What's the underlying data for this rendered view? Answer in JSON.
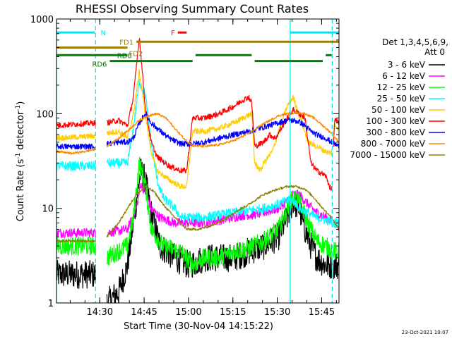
{
  "chart_data": {
    "type": "line",
    "title": "RHESSI Observing Summary Count Rates",
    "xlabel": "Start Time (30-Nov-04 14:15:22)",
    "ylabel": "Count Rate (s⁻¹ detector⁻¹)",
    "ylabel_parts": {
      "main": "Count Rate (s",
      "exp1": "-1",
      "mid": " detector",
      "exp2": "-1",
      "close": ")"
    },
    "yscale": "log",
    "ylim": [
      1,
      1000
    ],
    "xlim_minutes": [
      0,
      95.5
    ],
    "x_unit": "minutes since 14:15:22",
    "x_ticks": [
      {
        "label": "14:30",
        "value": 14.63
      },
      {
        "label": "14:45",
        "value": 29.63
      },
      {
        "label": "15:00",
        "value": 44.63
      },
      {
        "label": "15:15",
        "value": 59.63
      },
      {
        "label": "15:30",
        "value": 74.63
      },
      {
        "label": "15:45",
        "value": 89.63
      }
    ],
    "y_ticks": [
      {
        "label": "1",
        "value": 1
      },
      {
        "label": "10",
        "value": 10
      },
      {
        "label": "100",
        "value": 100
      },
      {
        "label": "1000",
        "value": 1000
      }
    ],
    "legend": {
      "header_line1": "Det 1,3,4,5,6,9,",
      "header_line2": "Att 0",
      "placement": "right"
    },
    "timestamp": "23-Oct-2021 10:07",
    "flags": [
      {
        "label": "N",
        "color": "#00e5ee",
        "y": 720,
        "segments": [
          [
            0,
            13
          ],
          [
            79,
            95.5
          ]
        ]
      },
      {
        "label": "F",
        "color": "#ff0000",
        "y": 720,
        "segments": [
          [
            41,
            44
          ]
        ]
      },
      {
        "label": "FD1",
        "color": "#9a7d0a",
        "y": 575,
        "segments": [
          [
            27,
            95.5
          ]
        ]
      },
      {
        "label": "FD2",
        "color": "#9a7d0a",
        "y": 500,
        "segments": [
          [
            0,
            24
          ]
        ]
      },
      {
        "label": "RD0",
        "color": "#008000",
        "y": 415,
        "segments": [
          [
            0,
            24
          ],
          [
            47,
            66
          ],
          [
            91,
            93
          ]
        ]
      },
      {
        "label": "RD6",
        "color": "#008000",
        "y": 360,
        "segments": [
          [
            18,
            46
          ],
          [
            67,
            90
          ]
        ]
      }
    ],
    "vlines": [
      {
        "x": 0,
        "color": "#00e5ee",
        "dashed": false
      },
      {
        "x": 13.2,
        "color": "#00e5ee",
        "dashed": true
      },
      {
        "x": 79,
        "color": "#00e5ee",
        "dashed": false
      },
      {
        "x": 93.2,
        "color": "#00e5ee",
        "dashed": true
      }
    ],
    "gaps": [
      [
        13.2,
        17
      ],
      [
        93.2,
        93.6
      ]
    ],
    "series": [
      {
        "name": "3 - 6 keV",
        "color": "#000000",
        "noise": 0.15,
        "points": [
          [
            0,
            2.0
          ],
          [
            13,
            2.0
          ],
          [
            17,
            1.0
          ],
          [
            21,
            1.3
          ],
          [
            24,
            2.5
          ],
          [
            27,
            12
          ],
          [
            28.5,
            25
          ],
          [
            30,
            20
          ],
          [
            32,
            9
          ],
          [
            35,
            4
          ],
          [
            40,
            3
          ],
          [
            45,
            2.5
          ],
          [
            50,
            3
          ],
          [
            55,
            3
          ],
          [
            60,
            3
          ],
          [
            65,
            3.5
          ],
          [
            70,
            4
          ],
          [
            75,
            5
          ],
          [
            78,
            8
          ],
          [
            80,
            12
          ],
          [
            82,
            10
          ],
          [
            84,
            6
          ],
          [
            86,
            4
          ],
          [
            88,
            3
          ],
          [
            91,
            2.5
          ],
          [
            94,
            2.5
          ],
          [
            95.5,
            2.5
          ]
        ]
      },
      {
        "name": "6 - 12 keV",
        "color": "#ff00ff",
        "noise": 0.05,
        "points": [
          [
            0,
            5.5
          ],
          [
            13,
            5.5
          ],
          [
            17,
            5.5
          ],
          [
            24,
            6
          ],
          [
            27,
            10
          ],
          [
            28.5,
            18
          ],
          [
            30,
            15
          ],
          [
            32,
            10
          ],
          [
            35,
            8
          ],
          [
            40,
            7
          ],
          [
            43,
            7
          ],
          [
            46,
            7
          ],
          [
            50,
            7
          ],
          [
            55,
            7.5
          ],
          [
            60,
            8
          ],
          [
            63,
            8.5
          ],
          [
            66,
            8.5
          ],
          [
            70,
            9
          ],
          [
            75,
            10
          ],
          [
            78,
            12
          ],
          [
            80,
            14
          ],
          [
            82,
            14
          ],
          [
            85,
            11
          ],
          [
            88,
            9
          ],
          [
            91,
            8
          ],
          [
            94,
            7
          ],
          [
            95.5,
            6.5
          ]
        ]
      },
      {
        "name": "12 - 25 keV",
        "color": "#00ff00",
        "noise": 0.1,
        "points": [
          [
            0,
            4
          ],
          [
            13,
            4
          ],
          [
            17,
            3
          ],
          [
            24,
            4
          ],
          [
            26,
            8
          ],
          [
            28,
            30
          ],
          [
            30,
            18
          ],
          [
            32,
            6
          ],
          [
            36,
            4
          ],
          [
            42,
            3.5
          ],
          [
            46,
            2.5
          ],
          [
            50,
            3
          ],
          [
            55,
            3
          ],
          [
            60,
            3.5
          ],
          [
            65,
            3.8
          ],
          [
            70,
            4.5
          ],
          [
            75,
            6
          ],
          [
            78,
            10
          ],
          [
            80,
            13
          ],
          [
            82,
            12
          ],
          [
            85,
            7
          ],
          [
            88,
            4.5
          ],
          [
            91,
            4
          ],
          [
            94,
            3.5
          ],
          [
            95.5,
            3.5
          ]
        ]
      },
      {
        "name": "25 - 50 keV",
        "color": "#00ffff",
        "noise": 0.05,
        "points": [
          [
            0,
            28
          ],
          [
            13,
            28
          ],
          [
            17,
            30
          ],
          [
            24,
            30
          ],
          [
            26,
            70
          ],
          [
            28,
            220
          ],
          [
            30,
            160
          ],
          [
            32,
            50
          ],
          [
            34,
            20
          ],
          [
            36,
            13
          ],
          [
            40,
            10
          ],
          [
            42,
            8
          ],
          [
            44,
            8
          ],
          [
            48,
            8
          ],
          [
            50,
            8
          ],
          [
            55,
            8.5
          ],
          [
            60,
            9
          ],
          [
            65,
            9.5
          ],
          [
            70,
            10
          ],
          [
            75,
            11
          ],
          [
            78,
            12
          ],
          [
            80,
            12
          ],
          [
            82,
            10
          ],
          [
            85,
            9
          ],
          [
            88,
            8
          ],
          [
            91,
            7.5
          ],
          [
            94,
            7
          ],
          [
            95.5,
            7
          ]
        ]
      },
      {
        "name": "50 - 100 keV",
        "color": "#ffcc00",
        "noise": 0.03,
        "points": [
          [
            0,
            55
          ],
          [
            13,
            58
          ],
          [
            17,
            62
          ],
          [
            21,
            65
          ],
          [
            24,
            55
          ],
          [
            26,
            100
          ],
          [
            28,
            280
          ],
          [
            30,
            100
          ],
          [
            32,
            40
          ],
          [
            34,
            25
          ],
          [
            38,
            20
          ],
          [
            42,
            17
          ],
          [
            44,
            17
          ],
          [
            46,
            65
          ],
          [
            50,
            65
          ],
          [
            55,
            70
          ],
          [
            60,
            80
          ],
          [
            63,
            90
          ],
          [
            66,
            100
          ],
          [
            67,
            30
          ],
          [
            69,
            25
          ],
          [
            70,
            30
          ],
          [
            73,
            40
          ],
          [
            76,
            80
          ],
          [
            78,
            120
          ],
          [
            80,
            150
          ],
          [
            81,
            120
          ],
          [
            83,
            80
          ],
          [
            85,
            50
          ],
          [
            88,
            45
          ],
          [
            91,
            40
          ],
          [
            93,
            38
          ],
          [
            94,
            75
          ],
          [
            95.5,
            70
          ]
        ]
      },
      {
        "name": "100 - 300 keV",
        "color": "#ff0000",
        "noise": 0.03,
        "points": [
          [
            0,
            75
          ],
          [
            13,
            80
          ],
          [
            17,
            80
          ],
          [
            21,
            85
          ],
          [
            24,
            75
          ],
          [
            26,
            150
          ],
          [
            28,
            650
          ],
          [
            30,
            120
          ],
          [
            32,
            50
          ],
          [
            34,
            35
          ],
          [
            38,
            28
          ],
          [
            42,
            25
          ],
          [
            44,
            25
          ],
          [
            46,
            90
          ],
          [
            50,
            90
          ],
          [
            55,
            100
          ],
          [
            60,
            120
          ],
          [
            63,
            140
          ],
          [
            65,
            150
          ],
          [
            66,
            130
          ],
          [
            67,
            45
          ],
          [
            70,
            50
          ],
          [
            72,
            60
          ],
          [
            74,
            55
          ],
          [
            76,
            70
          ],
          [
            78,
            90
          ],
          [
            80,
            110
          ],
          [
            82,
            100
          ],
          [
            84,
            90
          ],
          [
            86,
            30
          ],
          [
            88,
            25
          ],
          [
            91,
            22
          ],
          [
            93,
            15
          ],
          [
            94,
            85
          ],
          [
            95.5,
            80
          ]
        ]
      },
      {
        "name": "300 - 800 keV",
        "color": "#0000ff",
        "noise": 0.03,
        "points": [
          [
            0,
            45
          ],
          [
            13,
            45
          ],
          [
            17,
            48
          ],
          [
            21,
            50
          ],
          [
            24,
            50
          ],
          [
            26,
            55
          ],
          [
            28,
            80
          ],
          [
            30,
            100
          ],
          [
            32,
            80
          ],
          [
            34,
            70
          ],
          [
            38,
            55
          ],
          [
            42,
            48
          ],
          [
            46,
            48
          ],
          [
            50,
            50
          ],
          [
            55,
            55
          ],
          [
            60,
            60
          ],
          [
            65,
            65
          ],
          [
            70,
            72
          ],
          [
            75,
            80
          ],
          [
            78,
            85
          ],
          [
            80,
            85
          ],
          [
            82,
            82
          ],
          [
            84,
            75
          ],
          [
            86,
            65
          ],
          [
            88,
            60
          ],
          [
            91,
            55
          ],
          [
            93,
            50
          ],
          [
            95.5,
            45
          ]
        ]
      },
      {
        "name": "800 - 7000 keV",
        "color": "#ff8800",
        "noise": 0.012,
        "points": [
          [
            0,
            40
          ],
          [
            5,
            38
          ],
          [
            10,
            40
          ],
          [
            13,
            42
          ],
          [
            17,
            45
          ],
          [
            21,
            55
          ],
          [
            25,
            70
          ],
          [
            28,
            85
          ],
          [
            31,
            95
          ],
          [
            34,
            100
          ],
          [
            37,
            90
          ],
          [
            40,
            70
          ],
          [
            43,
            55
          ],
          [
            46,
            46
          ],
          [
            50,
            45
          ],
          [
            55,
            47
          ],
          [
            60,
            52
          ],
          [
            65,
            62
          ],
          [
            70,
            78
          ],
          [
            75,
            95
          ],
          [
            78,
            100
          ],
          [
            81,
            103
          ],
          [
            84,
            100
          ],
          [
            87,
            90
          ],
          [
            90,
            75
          ],
          [
            93,
            62
          ],
          [
            95.5,
            50
          ]
        ]
      },
      {
        "name": "7000 - 15000 keV",
        "color": "#8b8000",
        "noise": 0.012,
        "points": [
          [
            0,
            4.5
          ],
          [
            13,
            4.5
          ],
          [
            17,
            5
          ],
          [
            21,
            7
          ],
          [
            24,
            10
          ],
          [
            27,
            14
          ],
          [
            30,
            17
          ],
          [
            33,
            15
          ],
          [
            36,
            11
          ],
          [
            40,
            8
          ],
          [
            44,
            6
          ],
          [
            48,
            6
          ],
          [
            52,
            6.5
          ],
          [
            56,
            7.5
          ],
          [
            60,
            9
          ],
          [
            65,
            11
          ],
          [
            70,
            14
          ],
          [
            75,
            16
          ],
          [
            78,
            17
          ],
          [
            81,
            17
          ],
          [
            84,
            16
          ],
          [
            87,
            13
          ],
          [
            90,
            10
          ],
          [
            93,
            8
          ],
          [
            95.5,
            6
          ]
        ]
      }
    ]
  }
}
